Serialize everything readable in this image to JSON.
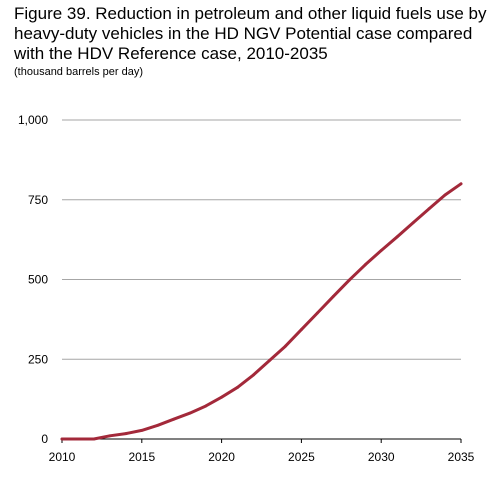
{
  "header": {
    "title": "Figure 39. Reduction in petroleum and other liquid fuels use by heavy-duty vehicles in the HD NGV Potential case compared with the HDV Reference case, 2010-2035",
    "subtitle": "(thousand barrels per day)"
  },
  "colors": {
    "series": "#a3293a",
    "grid": "#a6a6a6",
    "axis": "#000000"
  },
  "chart_data": {
    "type": "line",
    "title": "Figure 39. Reduction in petroleum and other liquid fuels use by heavy-duty vehicles in the HD NGV Potential case compared with the HDV Reference case, 2010-2035",
    "subtitle": "(thousand barrels per day)",
    "xlabel": "",
    "ylabel": "",
    "xlim": [
      2010,
      2035
    ],
    "ylim": [
      0,
      1000
    ],
    "x_ticks": [
      2010,
      2015,
      2020,
      2025,
      2030,
      2035
    ],
    "x_tick_labels": [
      "2010",
      "2015",
      "2020",
      "2025",
      "2030",
      "2035"
    ],
    "y_ticks": [
      0,
      250,
      500,
      750,
      1000
    ],
    "y_tick_labels": [
      "0",
      "250",
      "500",
      "750",
      "1,000"
    ],
    "grid": "horizontal",
    "legend": "none",
    "series": [
      {
        "x": [
          2010,
          2011,
          2012,
          2013,
          2014,
          2015,
          2016,
          2017,
          2018,
          2019,
          2020,
          2021,
          2022,
          2023,
          2024,
          2025,
          2026,
          2027,
          2028,
          2029,
          2030,
          2031,
          2032,
          2033,
          2034,
          2035
        ],
        "values": [
          0,
          0,
          0,
          10,
          17,
          27,
          43,
          62,
          81,
          103,
          131,
          162,
          201,
          246,
          291,
          343,
          395,
          447,
          498,
          546,
          591,
          634,
          678,
          722,
          765,
          800
        ]
      }
    ]
  }
}
